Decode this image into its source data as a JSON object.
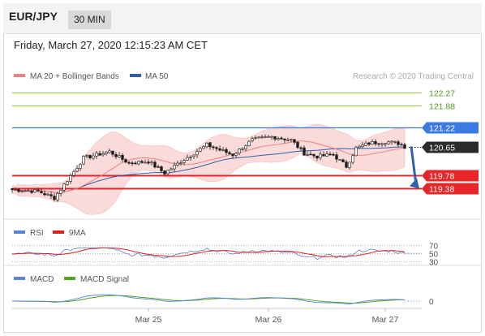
{
  "header": {
    "pair": "EUR/JPY",
    "timeframe": "30 MIN",
    "datetime": "Friday, March 27, 2020 12:15:23 AM CET"
  },
  "legend": {
    "ma20": "MA 20 + Bollinger Bands",
    "ma50": "MA 50",
    "copyright": "Research © 2020 Trading Central",
    "rsi": "RSI",
    "rsi_ma": "9MA",
    "macd": "MACD",
    "macd_signal": "MACD Signal"
  },
  "colors": {
    "candle": "#1a1a1a",
    "ma20": "#f08080",
    "band": "#fbdada",
    "ma50": "#2d5fa8",
    "resistance": "#8ac44b",
    "resistance_label": "#4c9a1c",
    "pivot": "#3b7ae0",
    "support": "#e8262a",
    "current": "#2b2b2b",
    "arrow": "#2f62a8",
    "rsi": "#5a7fd6",
    "rsi_ma": "#dd2020",
    "macd": "#5a7fd6",
    "macd_signal": "#4ea61e"
  },
  "chart_data": {
    "type": "candlestick",
    "instrument": "EUR/JPY",
    "interval": "30 MIN",
    "ylim": [
      118.9,
      122.6
    ],
    "x_tick_labels": [
      "Mar 25",
      "Mar 26",
      "Mar 27"
    ],
    "levels": [
      {
        "value": 122.27,
        "label": "122.27",
        "kind": "resistance"
      },
      {
        "value": 121.88,
        "label": "121.88",
        "kind": "resistance"
      },
      {
        "value": 121.22,
        "label": "121.22",
        "kind": "pivot"
      },
      {
        "value": 120.65,
        "label": "120.65",
        "kind": "current"
      },
      {
        "value": 119.78,
        "label": "119.78",
        "kind": "support"
      },
      {
        "value": 119.38,
        "label": "119.38",
        "kind": "support"
      }
    ],
    "close_anchors": [
      [
        0,
        119.35
      ],
      [
        8,
        119.3
      ],
      [
        13,
        119.1
      ],
      [
        16,
        119.5
      ],
      [
        22,
        120.3
      ],
      [
        30,
        120.5
      ],
      [
        36,
        120.15
      ],
      [
        42,
        120.2
      ],
      [
        47,
        119.85
      ],
      [
        52,
        120.2
      ],
      [
        60,
        120.7
      ],
      [
        68,
        120.4
      ],
      [
        74,
        120.85
      ],
      [
        80,
        120.95
      ],
      [
        86,
        120.85
      ],
      [
        90,
        120.45
      ],
      [
        94,
        120.35
      ],
      [
        99,
        120.4
      ],
      [
        103,
        120.05
      ],
      [
        106,
        120.6
      ],
      [
        110,
        120.75
      ],
      [
        115,
        120.8
      ],
      [
        119,
        120.75
      ],
      [
        121,
        120.65
      ]
    ],
    "rsi": {
      "levels": [
        70,
        50,
        30
      ],
      "ylim": [
        25,
        75
      ]
    },
    "macd": {
      "zero_label": "0"
    }
  }
}
